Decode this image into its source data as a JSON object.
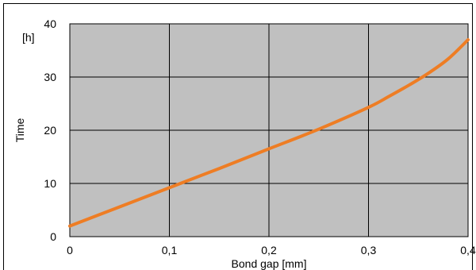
{
  "chart_data": {
    "type": "line",
    "title": "",
    "xlabel": "Bond gap [mm]",
    "ylabel": "Time",
    "y_unit": "[h]",
    "xlim": [
      0,
      0.4
    ],
    "ylim": [
      0,
      40
    ],
    "x_ticks": [
      {
        "value": 0,
        "label": "0"
      },
      {
        "value": 0.1,
        "label": "0,1"
      },
      {
        "value": 0.2,
        "label": "0,2"
      },
      {
        "value": 0.3,
        "label": "0,3"
      },
      {
        "value": 0.4,
        "label": "0,4"
      }
    ],
    "y_ticks": [
      {
        "value": 0,
        "label": "0"
      },
      {
        "value": 10,
        "label": "10"
      },
      {
        "value": 20,
        "label": "20"
      },
      {
        "value": 30,
        "label": "30"
      },
      {
        "value": 40,
        "label": "40"
      }
    ],
    "grid": true,
    "series": [
      {
        "name": "",
        "color": "#ee7d24",
        "x": [
          0,
          0.05,
          0.1,
          0.15,
          0.2,
          0.25,
          0.3,
          0.32,
          0.34,
          0.36,
          0.38,
          0.4
        ],
        "y": [
          2,
          5.6,
          9.2,
          12.8,
          16.5,
          20.2,
          24.3,
          26.3,
          28.4,
          30.7,
          33.4,
          37
        ]
      }
    ],
    "plot_background": "#c0c0c0"
  }
}
